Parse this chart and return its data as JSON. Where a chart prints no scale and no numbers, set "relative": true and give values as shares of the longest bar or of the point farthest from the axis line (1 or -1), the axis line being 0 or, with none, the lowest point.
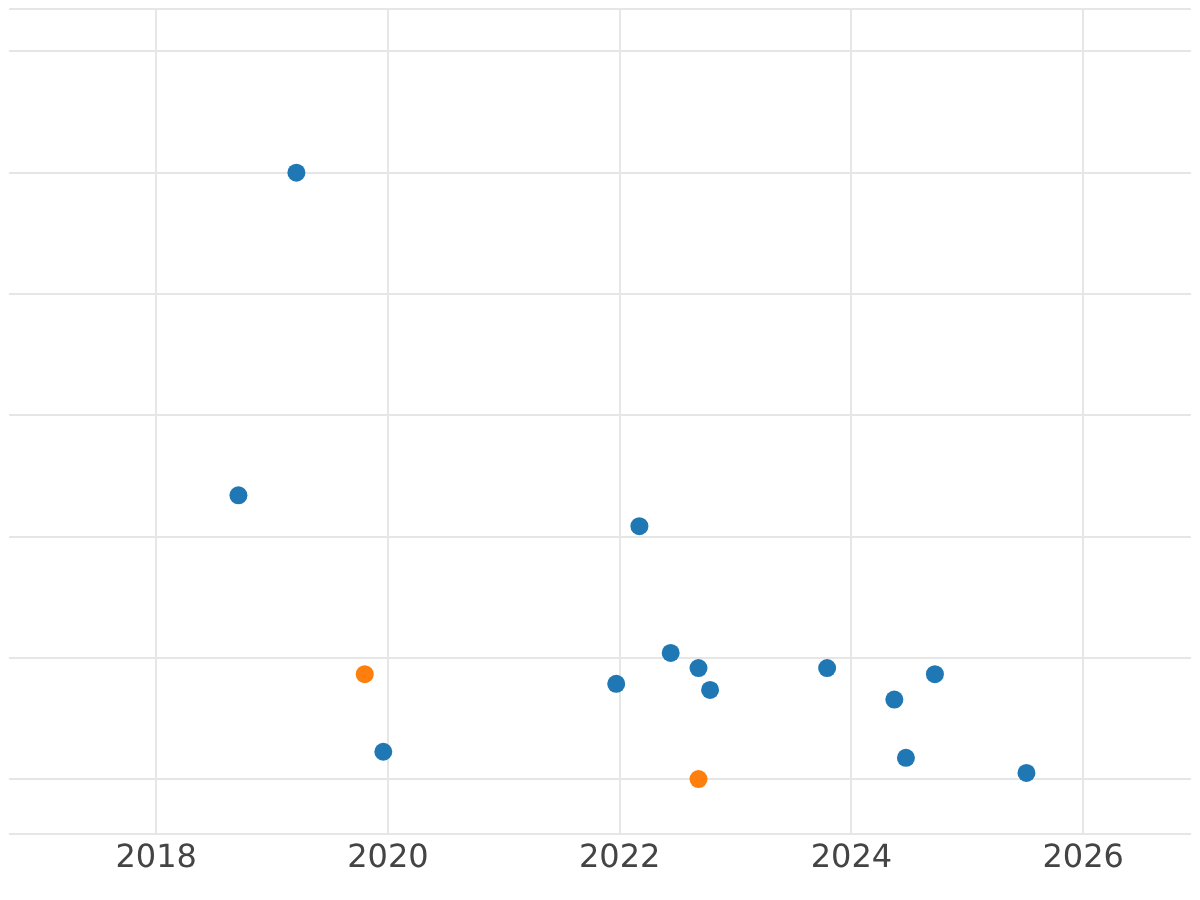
{
  "chart_data": {
    "type": "scatter",
    "relative": true,
    "xlim": [
      2016.73,
      2026.93
    ],
    "xticks": [
      2018,
      2020,
      2022,
      2024,
      2026
    ],
    "grid": true,
    "legend": false,
    "marker": "circle",
    "series": [
      {
        "color": "#1f77b4",
        "x": [
          2019.21,
          2018.71,
          2022.17,
          2022.44,
          2022.68,
          2021.97,
          2022.78,
          2023.79,
          2024.72,
          2024.37,
          2019.96,
          2024.47,
          2025.51
        ],
        "values": [
          1,
          0.468,
          0.417,
          0.208,
          0.183,
          0.157,
          0.147,
          0.183,
          0.173,
          0.131,
          0.045,
          0.035,
          0.01
        ]
      },
      {
        "color": "#ff7f0e",
        "x": [
          2019.8,
          2022.68
        ],
        "values": [
          0.173,
          0
        ]
      }
    ]
  }
}
